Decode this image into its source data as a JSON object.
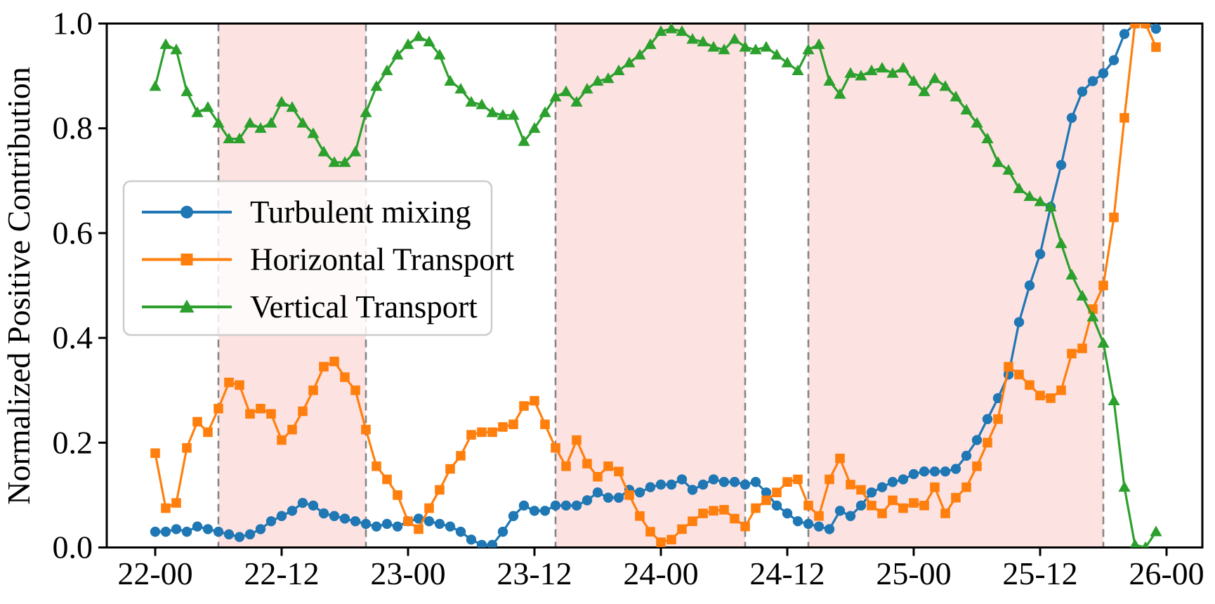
{
  "chart_data": {
    "type": "line",
    "title": "",
    "xlabel": "",
    "ylabel": "Normalized Positive Contribution",
    "ylim": [
      0.0,
      1.0
    ],
    "grid": false,
    "legend_position": "upper left",
    "y_tick_labels": [
      "0.0",
      "0.2",
      "0.4",
      "0.6",
      "0.8",
      "1.0"
    ],
    "x_tick_labels": [
      "22-00",
      "22-12",
      "23-00",
      "23-12",
      "24-00",
      "24-12",
      "25-00",
      "25-12",
      "26-00"
    ],
    "x": [
      "22-00",
      "22-01",
      "22-02",
      "22-03",
      "22-04",
      "22-05",
      "22-06",
      "22-07",
      "22-08",
      "22-09",
      "22-10",
      "22-11",
      "22-12",
      "22-13",
      "22-14",
      "22-15",
      "22-16",
      "22-17",
      "22-18",
      "22-19",
      "22-20",
      "22-21",
      "22-22",
      "22-23",
      "23-00",
      "23-01",
      "23-02",
      "23-03",
      "23-04",
      "23-05",
      "23-06",
      "23-07",
      "23-08",
      "23-09",
      "23-10",
      "23-11",
      "23-12",
      "23-13",
      "23-14",
      "23-15",
      "23-16",
      "23-17",
      "23-18",
      "23-19",
      "23-20",
      "23-21",
      "23-22",
      "23-23",
      "24-00",
      "24-01",
      "24-02",
      "24-03",
      "24-04",
      "24-05",
      "24-06",
      "24-07",
      "24-08",
      "24-09",
      "24-10",
      "24-11",
      "24-12",
      "24-13",
      "24-14",
      "24-15",
      "24-16",
      "24-17",
      "24-18",
      "24-19",
      "24-20",
      "24-21",
      "24-22",
      "24-23",
      "25-00",
      "25-01",
      "25-02",
      "25-03",
      "25-04",
      "25-05",
      "25-06",
      "25-07",
      "25-08",
      "25-09",
      "25-10",
      "25-11",
      "25-12",
      "25-13",
      "25-14",
      "25-15",
      "25-16",
      "25-17",
      "25-18",
      "25-19",
      "25-20",
      "25-21",
      "25-22",
      "25-23"
    ],
    "series": [
      {
        "name": "Turbulent mixing",
        "color": "#1f77b4",
        "marker": "circle",
        "values": [
          0.03,
          0.03,
          0.035,
          0.03,
          0.04,
          0.035,
          0.03,
          0.025,
          0.02,
          0.025,
          0.035,
          0.05,
          0.06,
          0.07,
          0.085,
          0.08,
          0.065,
          0.06,
          0.055,
          0.05,
          0.045,
          0.04,
          0.045,
          0.04,
          0.05,
          0.055,
          0.05,
          0.045,
          0.04,
          0.03,
          0.015,
          0.005,
          0.005,
          0.03,
          0.06,
          0.08,
          0.07,
          0.07,
          0.08,
          0.08,
          0.08,
          0.09,
          0.105,
          0.095,
          0.095,
          0.11,
          0.105,
          0.115,
          0.12,
          0.12,
          0.13,
          0.11,
          0.12,
          0.13,
          0.125,
          0.125,
          0.12,
          0.125,
          0.105,
          0.08,
          0.065,
          0.05,
          0.045,
          0.04,
          0.035,
          0.07,
          0.06,
          0.08,
          0.105,
          0.115,
          0.125,
          0.13,
          0.14,
          0.145,
          0.145,
          0.145,
          0.15,
          0.175,
          0.205,
          0.245,
          0.285,
          0.33,
          0.43,
          0.5,
          0.56,
          0.65,
          0.73,
          0.82,
          0.87,
          0.89,
          0.905,
          0.93,
          0.98,
          1.0,
          1.0,
          0.99
        ]
      },
      {
        "name": "Horizontal Transport",
        "color": "#ff7f0e",
        "marker": "square",
        "values": [
          0.18,
          0.075,
          0.085,
          0.19,
          0.24,
          0.22,
          0.265,
          0.315,
          0.31,
          0.255,
          0.265,
          0.255,
          0.205,
          0.225,
          0.26,
          0.3,
          0.345,
          0.355,
          0.325,
          0.3,
          0.225,
          0.155,
          0.13,
          0.1,
          0.05,
          0.035,
          0.075,
          0.11,
          0.15,
          0.175,
          0.215,
          0.22,
          0.22,
          0.23,
          0.235,
          0.27,
          0.28,
          0.235,
          0.19,
          0.155,
          0.205,
          0.16,
          0.135,
          0.155,
          0.145,
          0.1,
          0.06,
          0.03,
          0.01,
          0.015,
          0.035,
          0.05,
          0.065,
          0.07,
          0.072,
          0.055,
          0.04,
          0.075,
          0.09,
          0.105,
          0.125,
          0.13,
          0.08,
          0.06,
          0.13,
          0.17,
          0.12,
          0.11,
          0.08,
          0.065,
          0.09,
          0.075,
          0.085,
          0.08,
          0.115,
          0.065,
          0.095,
          0.115,
          0.155,
          0.2,
          0.245,
          0.345,
          0.33,
          0.31,
          0.29,
          0.285,
          0.3,
          0.37,
          0.38,
          0.455,
          0.5,
          0.63,
          0.82,
          1.0,
          1.0,
          0.955
        ]
      },
      {
        "name": "Vertical Transport",
        "color": "#2ca02c",
        "marker": "triangle",
        "values": [
          0.88,
          0.96,
          0.95,
          0.87,
          0.83,
          0.84,
          0.81,
          0.78,
          0.78,
          0.81,
          0.8,
          0.81,
          0.85,
          0.84,
          0.81,
          0.79,
          0.755,
          0.735,
          0.735,
          0.755,
          0.83,
          0.88,
          0.91,
          0.94,
          0.96,
          0.975,
          0.965,
          0.94,
          0.89,
          0.875,
          0.85,
          0.845,
          0.83,
          0.825,
          0.825,
          0.775,
          0.8,
          0.83,
          0.86,
          0.87,
          0.85,
          0.875,
          0.89,
          0.895,
          0.91,
          0.925,
          0.94,
          0.96,
          0.985,
          0.99,
          0.985,
          0.97,
          0.965,
          0.955,
          0.95,
          0.97,
          0.955,
          0.95,
          0.955,
          0.94,
          0.925,
          0.91,
          0.95,
          0.96,
          0.89,
          0.865,
          0.905,
          0.9,
          0.91,
          0.915,
          0.905,
          0.915,
          0.89,
          0.87,
          0.895,
          0.88,
          0.86,
          0.835,
          0.81,
          0.78,
          0.735,
          0.72,
          0.685,
          0.67,
          0.66,
          0.65,
          0.58,
          0.52,
          0.48,
          0.44,
          0.39,
          0.28,
          0.115,
          0.005,
          0.0,
          0.03
        ]
      }
    ],
    "shaded_regions": [
      {
        "from": "22-06",
        "to": "22-20"
      },
      {
        "from": "23-14",
        "to": "24-08"
      },
      {
        "from": "24-14",
        "to": "25-18"
      }
    ],
    "shade_color": "#fde2e2",
    "boundary_line_color": "#868686",
    "frame_color": "#000000",
    "legend": {
      "entries": [
        "Turbulent mixing",
        "Horizontal Transport",
        "Vertical Transport"
      ],
      "background": "#ffffff",
      "border_color": "#cccccc"
    }
  }
}
